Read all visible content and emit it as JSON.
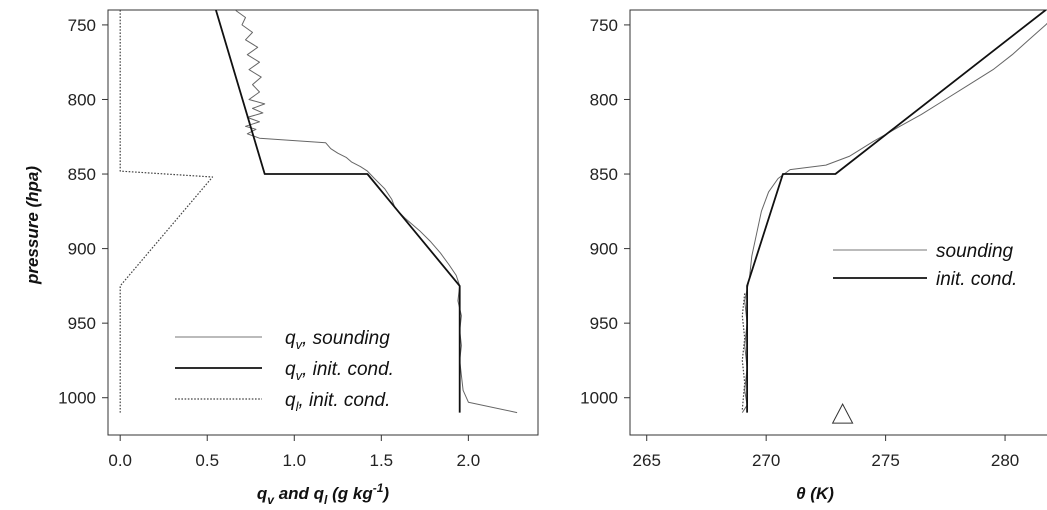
{
  "chart_data": [
    {
      "type": "line",
      "xlabel": "q_v and q_l (g kg-1)",
      "xlabel_parts": {
        "q1": "q",
        "s1": "v",
        "and": " and ",
        "q2": "q",
        "s2": "l",
        "unit": " (g kg",
        "exp": "-1",
        "close": ")"
      },
      "ylabel": "pressure (hpa)",
      "xlim": [
        -0.07,
        2.4
      ],
      "ylim": [
        1025,
        740
      ],
      "xticks": [
        0.0,
        0.5,
        1.0,
        1.5,
        2.0
      ],
      "xtick_labels": [
        "0.0",
        "0.5",
        "1.0",
        "1.5",
        "2.0"
      ],
      "yticks": [
        750,
        800,
        850,
        900,
        950,
        1000
      ],
      "ytick_labels": [
        "750",
        "800",
        "850",
        "900",
        "950",
        "1000"
      ],
      "legend": {
        "placement": "bottom-center",
        "entries": [
          {
            "main": "q",
            "sub": "v",
            "rest": ", sounding",
            "style": "thin"
          },
          {
            "main": "q",
            "sub": "v",
            "rest": ", init. cond.",
            "style": "thick"
          },
          {
            "main": "q",
            "sub": "l",
            "rest": ", init. cond.",
            "style": "dotted"
          }
        ]
      },
      "series": [
        {
          "style": "thin",
          "color": "#666666",
          "points": [
            [
              0.66,
              740
            ],
            [
              0.72,
              745
            ],
            [
              0.7,
              750
            ],
            [
              0.76,
              755
            ],
            [
              0.72,
              760
            ],
            [
              0.79,
              765
            ],
            [
              0.73,
              770
            ],
            [
              0.8,
              775
            ],
            [
              0.74,
              780
            ],
            [
              0.81,
              785
            ],
            [
              0.76,
              790
            ],
            [
              0.8,
              795
            ],
            [
              0.74,
              800
            ],
            [
              0.83,
              803
            ],
            [
              0.76,
              806
            ],
            [
              0.82,
              809
            ],
            [
              0.73,
              812
            ],
            [
              0.8,
              815
            ],
            [
              0.72,
              818
            ],
            [
              0.78,
              820
            ],
            [
              0.73,
              823
            ],
            [
              0.8,
              826
            ],
            [
              1.18,
              829
            ],
            [
              1.21,
              833
            ],
            [
              1.25,
              836
            ],
            [
              1.3,
              839
            ],
            [
              1.33,
              842
            ],
            [
              1.38,
              845
            ],
            [
              1.42,
              848
            ],
            [
              1.46,
              853
            ],
            [
              1.52,
              860
            ],
            [
              1.56,
              867
            ],
            [
              1.58,
              873
            ],
            [
              1.64,
              880
            ],
            [
              1.72,
              888
            ],
            [
              1.78,
              895
            ],
            [
              1.84,
              903
            ],
            [
              1.89,
              911
            ],
            [
              1.93,
              918
            ],
            [
              1.95,
              925
            ],
            [
              1.94,
              935
            ],
            [
              1.96,
              945
            ],
            [
              1.95,
              955
            ],
            [
              1.96,
              965
            ],
            [
              1.95,
              975
            ],
            [
              1.96,
              985
            ],
            [
              1.97,
              995
            ],
            [
              2.0,
              1003
            ],
            [
              2.28,
              1010
            ]
          ]
        },
        {
          "style": "thick",
          "color": "#111111",
          "points": [
            [
              0.55,
              740
            ],
            [
              0.83,
              850
            ],
            [
              1.42,
              850
            ],
            [
              1.95,
              925
            ],
            [
              1.95,
              1010
            ]
          ]
        },
        {
          "style": "dotted",
          "color": "#444444",
          "points": [
            [
              0.0,
              740
            ],
            [
              0.0,
              848
            ],
            [
              0.53,
              852
            ],
            [
              0.0,
              925
            ],
            [
              0.0,
              1010
            ]
          ]
        }
      ]
    },
    {
      "type": "line",
      "xlabel": "θ (K)",
      "xlabel_parts": {
        "sym": "θ",
        "unit": " (K)"
      },
      "xlim": [
        264.3,
        282.3
      ],
      "ylim": [
        1025,
        740
      ],
      "xticks": [
        265,
        270,
        275,
        280
      ],
      "xtick_labels": [
        "265",
        "270",
        "275",
        "280"
      ],
      "yticks": [
        750,
        800,
        850,
        900,
        950,
        1000
      ],
      "ytick_labels": [
        "750",
        "800",
        "850",
        "900",
        "950",
        "1000"
      ],
      "marker": {
        "shape": "triangle",
        "x": 273.2,
        "y": 1011
      },
      "legend": {
        "placement": "middle-right",
        "entries": [
          {
            "rest": "sounding",
            "style": "thin"
          },
          {
            "rest": "init. cond.",
            "style": "thick"
          }
        ]
      },
      "series": [
        {
          "style": "thin",
          "color": "#666666",
          "points": [
            [
              269.0,
              1010
            ],
            [
              269.2,
              1005
            ],
            [
              269.1,
              995
            ],
            [
              269.2,
              980
            ],
            [
              269.1,
              965
            ],
            [
              269.2,
              950
            ],
            [
              269.1,
              935
            ],
            [
              269.3,
              920
            ],
            [
              269.4,
              905
            ],
            [
              269.6,
              890
            ],
            [
              269.8,
              875
            ],
            [
              270.1,
              862
            ],
            [
              270.5,
              853
            ],
            [
              271.0,
              847
            ],
            [
              272.5,
              844
            ],
            [
              273.5,
              838
            ],
            [
              274.5,
              828
            ],
            [
              275.6,
              818
            ],
            [
              276.5,
              810
            ],
            [
              277.5,
              800
            ],
            [
              278.5,
              790
            ],
            [
              279.5,
              780
            ],
            [
              280.3,
              770
            ],
            [
              281.0,
              760
            ],
            [
              281.7,
              750
            ],
            [
              282.0,
              745
            ]
          ]
        },
        {
          "style": "thick",
          "color": "#111111",
          "points": [
            [
              269.2,
              1010
            ],
            [
              269.2,
              925
            ],
            [
              270.7,
              850
            ],
            [
              272.9,
              850
            ],
            [
              281.7,
              740
            ]
          ]
        },
        {
          "style": "dotted",
          "color": "#444444",
          "points": [
            [
              269.0,
              1008
            ],
            [
              269.1,
              990
            ],
            [
              269.0,
              975
            ],
            [
              269.1,
              960
            ],
            [
              269.0,
              945
            ],
            [
              269.1,
              930
            ]
          ]
        }
      ]
    }
  ]
}
